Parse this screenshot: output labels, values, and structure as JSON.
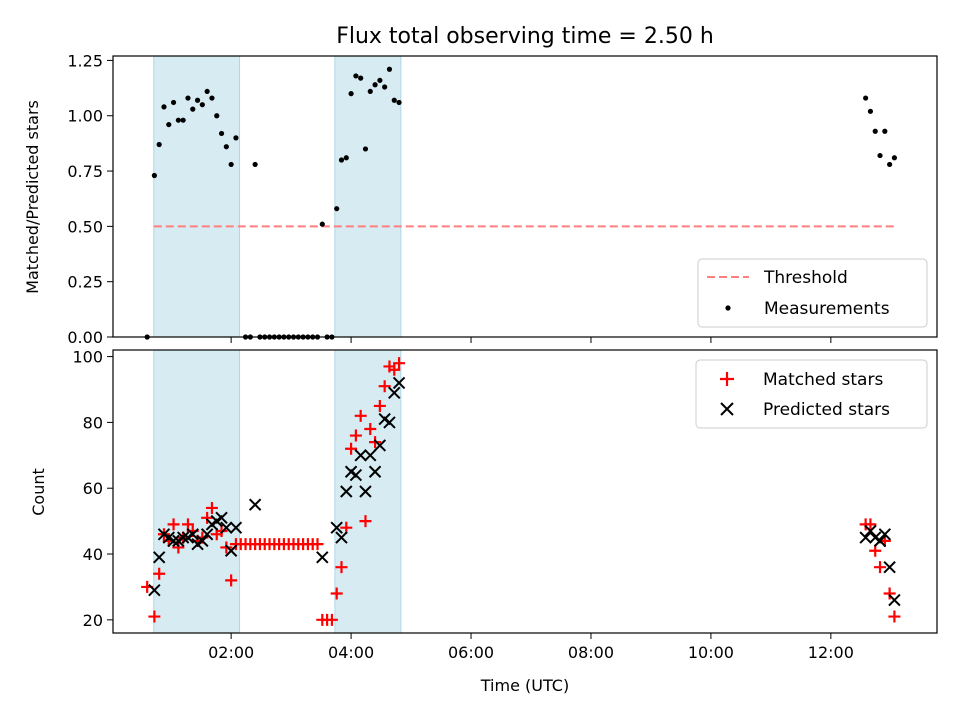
{
  "chart_data": {
    "title": "Flux total observing time = 2.50 h",
    "xlabel": "Time (UTC)",
    "x_ticks": [
      "02:00",
      "04:00",
      "06:00",
      "08:00",
      "10:00",
      "12:00"
    ],
    "x_range_hours": [
      0.03,
      13.77
    ],
    "shaded_intervals_hours": [
      [
        0.71,
        2.14
      ],
      [
        3.73,
        4.83
      ]
    ],
    "colors": {
      "shade": "#add8e6",
      "threshold": "#ff7f7f",
      "measurements": "#000000",
      "matched": "#ff0000",
      "predicted": "#000000"
    },
    "panels": [
      {
        "type": "scatter",
        "ylabel": "Matched/Predicted stars",
        "ylim": [
          0,
          1.27
        ],
        "y_ticks": [
          "0.00",
          "0.25",
          "0.50",
          "0.75",
          "1.00",
          "1.25"
        ],
        "legend_position": "lower-right",
        "legend": [
          {
            "label": "Threshold",
            "marker": "dashed-line"
          },
          {
            "label": "Measurements",
            "marker": "dot"
          }
        ],
        "threshold": {
          "y": 0.5,
          "x_start": 0.71,
          "x_end": 13.11
        },
        "series": [
          {
            "marker": "dot",
            "points": [
              [
                0.6,
                0.0
              ],
              [
                0.72,
                0.73
              ],
              [
                0.8,
                0.87
              ],
              [
                0.88,
                1.04
              ],
              [
                0.96,
                0.96
              ],
              [
                1.04,
                1.06
              ],
              [
                1.12,
                0.98
              ],
              [
                1.2,
                0.98
              ],
              [
                1.28,
                1.08
              ],
              [
                1.36,
                1.03
              ],
              [
                1.44,
                1.07
              ],
              [
                1.52,
                1.05
              ],
              [
                1.6,
                1.11
              ],
              [
                1.68,
                1.08
              ],
              [
                1.76,
                1.0
              ],
              [
                1.84,
                0.92
              ],
              [
                1.92,
                0.86
              ],
              [
                2.0,
                0.78
              ],
              [
                2.08,
                0.9
              ],
              [
                2.24,
                0.0
              ],
              [
                2.32,
                0.0
              ],
              [
                2.4,
                0.78
              ],
              [
                2.48,
                0.0
              ],
              [
                2.56,
                0.0
              ],
              [
                2.64,
                0.0
              ],
              [
                2.72,
                0.0
              ],
              [
                2.8,
                0.0
              ],
              [
                2.88,
                0.0
              ],
              [
                2.96,
                0.0
              ],
              [
                3.04,
                0.0
              ],
              [
                3.12,
                0.0
              ],
              [
                3.2,
                0.0
              ],
              [
                3.28,
                0.0
              ],
              [
                3.36,
                0.0
              ],
              [
                3.44,
                0.0
              ],
              [
                3.52,
                0.51
              ],
              [
                3.6,
                0.0
              ],
              [
                3.68,
                0.0
              ],
              [
                3.76,
                0.58
              ],
              [
                3.84,
                0.8
              ],
              [
                3.92,
                0.81
              ],
              [
                4.0,
                1.1
              ],
              [
                4.08,
                1.18
              ],
              [
                4.16,
                1.17
              ],
              [
                4.24,
                0.85
              ],
              [
                4.32,
                1.11
              ],
              [
                4.4,
                1.14
              ],
              [
                4.48,
                1.16
              ],
              [
                4.56,
                1.13
              ],
              [
                4.64,
                1.21
              ],
              [
                4.72,
                1.07
              ],
              [
                4.8,
                1.06
              ],
              [
                12.58,
                1.08
              ],
              [
                12.66,
                1.02
              ],
              [
                12.74,
                0.93
              ],
              [
                12.82,
                0.82
              ],
              [
                12.9,
                0.93
              ],
              [
                12.98,
                0.78
              ],
              [
                13.06,
                0.81
              ]
            ]
          }
        ]
      },
      {
        "type": "scatter",
        "ylabel": "Count",
        "ylim": [
          16,
          102
        ],
        "y_ticks": [
          "20",
          "40",
          "60",
          "80",
          "100"
        ],
        "legend_position": "upper-right",
        "legend": [
          {
            "label": "Matched stars",
            "marker": "plus"
          },
          {
            "label": "Predicted stars",
            "marker": "x"
          }
        ],
        "series": [
          {
            "name": "Matched stars",
            "marker": "plus",
            "points": [
              [
                0.6,
                30
              ],
              [
                0.72,
                21
              ],
              [
                0.8,
                34
              ],
              [
                0.88,
                46
              ],
              [
                0.96,
                44
              ],
              [
                1.04,
                49
              ],
              [
                1.12,
                42
              ],
              [
                1.2,
                45
              ],
              [
                1.28,
                49
              ],
              [
                1.36,
                47
              ],
              [
                1.44,
                44
              ],
              [
                1.52,
                45
              ],
              [
                1.6,
                51
              ],
              [
                1.68,
                54
              ],
              [
                1.76,
                46
              ],
              [
                1.84,
                47
              ],
              [
                1.92,
                42
              ],
              [
                2.0,
                32
              ],
              [
                2.08,
                43
              ],
              [
                2.16,
                43
              ],
              [
                2.24,
                43
              ],
              [
                2.32,
                43
              ],
              [
                2.4,
                43
              ],
              [
                2.48,
                43
              ],
              [
                2.56,
                43
              ],
              [
                2.64,
                43
              ],
              [
                2.72,
                43
              ],
              [
                2.8,
                43
              ],
              [
                2.88,
                43
              ],
              [
                2.96,
                43
              ],
              [
                3.04,
                43
              ],
              [
                3.12,
                43
              ],
              [
                3.2,
                43
              ],
              [
                3.28,
                43
              ],
              [
                3.36,
                43
              ],
              [
                3.44,
                43
              ],
              [
                3.52,
                20
              ],
              [
                3.6,
                20
              ],
              [
                3.68,
                20
              ],
              [
                3.76,
                28
              ],
              [
                3.84,
                36
              ],
              [
                3.92,
                48
              ],
              [
                4.0,
                72
              ],
              [
                4.08,
                76
              ],
              [
                4.16,
                82
              ],
              [
                4.24,
                50
              ],
              [
                4.32,
                78
              ],
              [
                4.4,
                74
              ],
              [
                4.48,
                85
              ],
              [
                4.56,
                91
              ],
              [
                4.64,
                97
              ],
              [
                4.72,
                96
              ],
              [
                4.8,
                98
              ],
              [
                12.58,
                49
              ],
              [
                12.66,
                49
              ],
              [
                12.74,
                41
              ],
              [
                12.82,
                36
              ],
              [
                12.9,
                44
              ],
              [
                12.98,
                28
              ],
              [
                13.06,
                21
              ]
            ]
          },
          {
            "name": "Predicted stars",
            "marker": "x",
            "points": [
              [
                0.72,
                29
              ],
              [
                0.8,
                39
              ],
              [
                0.88,
                46
              ],
              [
                0.96,
                45
              ],
              [
                1.04,
                44
              ],
              [
                1.12,
                44
              ],
              [
                1.2,
                45
              ],
              [
                1.28,
                45
              ],
              [
                1.36,
                46
              ],
              [
                1.44,
                43
              ],
              [
                1.52,
                44
              ],
              [
                1.6,
                46
              ],
              [
                1.68,
                49
              ],
              [
                1.76,
                50
              ],
              [
                1.84,
                51
              ],
              [
                1.92,
                48
              ],
              [
                2.0,
                41
              ],
              [
                2.08,
                48
              ],
              [
                2.4,
                55
              ],
              [
                3.52,
                39
              ],
              [
                3.76,
                48
              ],
              [
                3.84,
                45
              ],
              [
                3.92,
                59
              ],
              [
                4.0,
                65
              ],
              [
                4.08,
                64
              ],
              [
                4.16,
                70
              ],
              [
                4.24,
                59
              ],
              [
                4.32,
                70
              ],
              [
                4.4,
                65
              ],
              [
                4.48,
                73
              ],
              [
                4.56,
                81
              ],
              [
                4.64,
                80
              ],
              [
                4.72,
                89
              ],
              [
                4.8,
                92
              ],
              [
                12.58,
                45
              ],
              [
                12.66,
                47
              ],
              [
                12.74,
                45
              ],
              [
                12.82,
                44
              ],
              [
                12.9,
                46
              ],
              [
                12.98,
                36
              ],
              [
                13.06,
                26
              ]
            ]
          }
        ]
      }
    ]
  }
}
